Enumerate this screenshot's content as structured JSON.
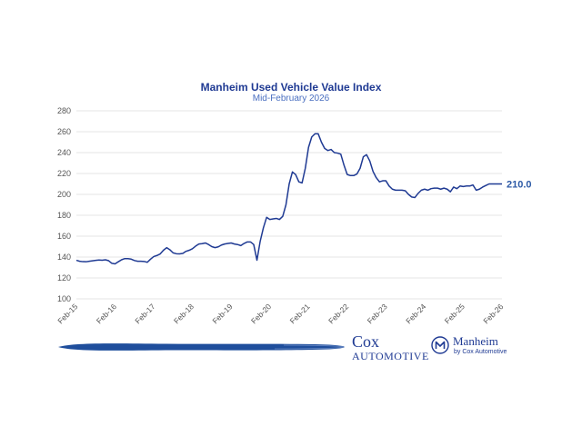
{
  "chart_data": {
    "type": "line",
    "title": "Manheim Used Vehicle Value Index",
    "subtitle": "Mid-February 2026",
    "ylim": [
      100,
      280
    ],
    "yticks": [
      100,
      120,
      140,
      160,
      180,
      200,
      220,
      240,
      260,
      280
    ],
    "grid": true,
    "line_color": "#1f3a93",
    "end_label": "210.0",
    "x_tick_labels": [
      "Feb-15",
      "Feb-16",
      "Feb-17",
      "Feb-18",
      "Feb-19",
      "Feb-20",
      "Feb-21",
      "Feb-22",
      "Feb-23",
      "Feb-24",
      "Feb-25",
      "Feb-26"
    ],
    "series": [
      {
        "x": [
          0,
          1,
          2,
          3,
          4,
          5,
          6,
          7,
          8,
          9,
          10,
          11,
          12,
          13,
          14,
          15,
          16,
          17,
          18,
          19,
          20,
          21,
          22,
          23,
          24,
          25,
          26,
          27,
          28,
          29,
          30,
          31,
          32,
          33,
          34,
          35,
          36,
          37,
          38,
          39,
          40,
          41,
          42,
          43,
          44,
          45,
          46,
          47,
          48,
          49,
          50,
          51,
          52,
          53,
          54,
          55,
          56,
          57,
          58,
          59,
          60,
          61,
          62,
          63,
          64,
          65,
          66,
          67,
          68,
          69,
          70,
          71,
          72,
          73,
          74,
          75,
          76,
          77,
          78,
          79,
          80,
          81,
          82,
          83,
          84,
          85,
          86,
          87,
          88,
          89,
          90,
          91,
          92,
          93,
          94,
          95,
          96,
          97,
          98,
          99,
          100,
          101,
          102,
          103,
          104,
          105,
          106,
          107,
          108,
          109,
          110,
          111,
          112,
          113,
          114,
          115,
          116,
          117,
          118,
          119,
          120,
          121,
          122,
          123,
          124,
          125,
          126,
          127,
          128,
          129,
          130,
          131,
          132
        ],
        "values": [
          136.9,
          136.0,
          135.6,
          135.5,
          136.0,
          136.4,
          136.8,
          137.2,
          137.0,
          137.4,
          136.5,
          134.0,
          133.5,
          135.5,
          137.4,
          138.5,
          138.5,
          138.0,
          136.7,
          136.0,
          136.0,
          135.8,
          135.0,
          138.0,
          140.5,
          141.5,
          143.0,
          146.5,
          149.0,
          147.0,
          144.0,
          143.2,
          143.0,
          143.5,
          145.5,
          146.5,
          148.0,
          150.5,
          152.5,
          152.8,
          153.5,
          152.0,
          150.0,
          149.0,
          149.8,
          151.5,
          152.5,
          153.0,
          153.5,
          152.5,
          152.0,
          151.0,
          153.0,
          154.5,
          154.5,
          152.0,
          137.0,
          155.0,
          168.0,
          178.0,
          176.0,
          176.5,
          177.0,
          176.0,
          179.0,
          190.0,
          210.0,
          221.5,
          219.0,
          212.0,
          211.0,
          225.0,
          245.0,
          255.0,
          258.0,
          258.0,
          250.0,
          244.0,
          242.0,
          243.0,
          240.0,
          239.5,
          238.5,
          228.0,
          219.0,
          218.0,
          218.0,
          219.5,
          225.0,
          236.0,
          238.0,
          232.0,
          222.0,
          216.0,
          212.0,
          213.0,
          213.0,
          208.0,
          205.0,
          204.0,
          204.0,
          204.0,
          203.5,
          200.0,
          197.5,
          197.0,
          201.0,
          204.0,
          205.0,
          204.0,
          205.5,
          206.0,
          206.0,
          205.0,
          206.0,
          205.0,
          202.5,
          207.0,
          205.5,
          208.0,
          207.5,
          208.0,
          208.0,
          209.0,
          204.0,
          205.0,
          207.0,
          208.5,
          210.0,
          210.0,
          210.0,
          210.0,
          210.0
        ]
      }
    ]
  },
  "footer": {
    "cox_word": "Cox",
    "cox_sub": "AUTOMOTIVE",
    "manheim_name": "Manheim",
    "manheim_sub": "by Cox Automotive"
  }
}
